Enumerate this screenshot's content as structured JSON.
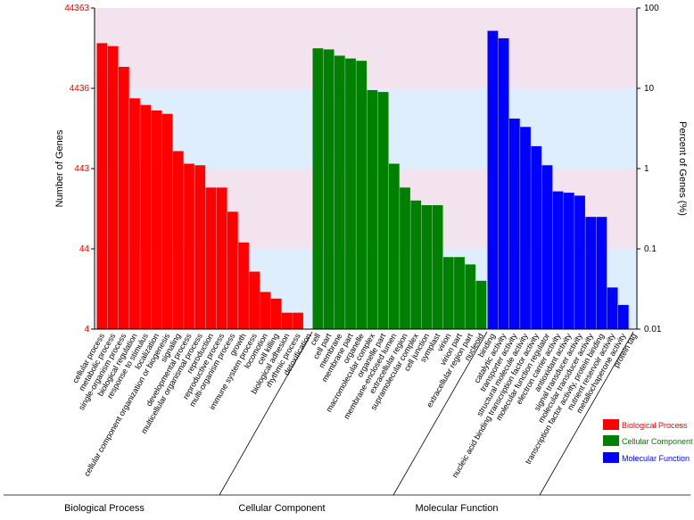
{
  "chart_data": {
    "type": "bar",
    "ylabel_left": "Number of Genes",
    "ylabel_right": "Percent of Genes (%)",
    "yscale": "log",
    "left_ticks": [
      "44363",
      "4436",
      "443",
      "44",
      "4"
    ],
    "right_ticks": [
      "100",
      "10",
      "1",
      "0.1",
      "0.01"
    ],
    "ylim_percent": [
      0.01,
      100
    ],
    "legend_position": "bottom-right",
    "groups": [
      {
        "name": "Biological Process",
        "color": "#ff0000",
        "legend_label": "Biological Process",
        "categories": [
          "cellular process",
          "metabolic process",
          "single-organism process",
          "biological regulation",
          "response to stimulus",
          "localization",
          "cellular component organization or biogenesis",
          "signaling",
          "developmental process",
          "multicellular organismal process",
          "reproduction",
          "reproductive process",
          "multi-organism process",
          "growth",
          "immune system process",
          "locomotion",
          "cell killing",
          "biological adhesion",
          "rhythmic process",
          "detoxification"
        ],
        "values": [
          36.5,
          33.5,
          18.5,
          7.5,
          6.2,
          5.3,
          4.8,
          1.65,
          1.15,
          1.1,
          0.58,
          0.58,
          0.29,
          0.12,
          0.052,
          0.029,
          0.024,
          0.016,
          0.016,
          0.0
        ]
      },
      {
        "name": "Cellular Component",
        "color": "#008000",
        "legend_label": "Cellular Component",
        "categories": [
          "cell",
          "cell part",
          "membrane",
          "membrane part",
          "organelle",
          "macromolecular complex",
          "organelle part",
          "membrane-enclosed lumen",
          "extracellular region",
          "supramolecular complex",
          "cell junction",
          "symplast",
          "virion",
          "virion part",
          "extracellular region part",
          "nucleoid"
        ],
        "values": [
          31.5,
          30.5,
          25.5,
          23.5,
          22.0,
          9.5,
          9.0,
          1.15,
          0.58,
          0.4,
          0.35,
          0.35,
          0.079,
          0.079,
          0.064,
          0.04
        ]
      },
      {
        "name": "Molecular Function",
        "color": "#0000ff",
        "legend_label": "Molecular Function",
        "categories": [
          "binding",
          "catalytic activity",
          "transporter activity",
          "structural molecule activity",
          "nucleic acid binding transcription factor activity",
          "molecular function regulator",
          "electron carrier activity",
          "antioxidant activity",
          "signal transducer activity",
          "molecular transducer activity",
          "transcription factor activity, protein binding",
          "nutrient reservoir activity",
          "metallochaperone activity",
          "protein tag"
        ],
        "values": [
          52.0,
          42.0,
          4.2,
          3.3,
          1.9,
          1.1,
          0.52,
          0.5,
          0.46,
          0.25,
          0.25,
          0.033,
          0.02,
          0.0
        ]
      }
    ]
  }
}
